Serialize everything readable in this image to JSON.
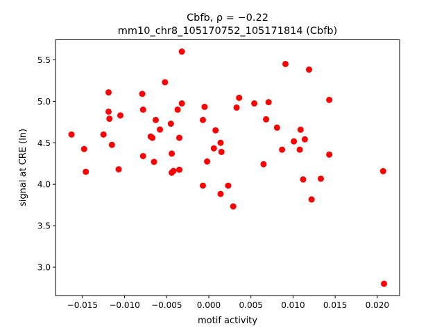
{
  "chart_data": {
    "type": "scatter",
    "title_line1": "Cbfb, ρ = −0.22",
    "title_line2": "mm10_chr8_105170752_105171814 (Cbfb)",
    "xlabel": "motif activity",
    "ylabel": "signal at CRE (ln)",
    "xlim": [
      -0.0182,
      0.02265
    ],
    "ylim": [
      2.658,
      5.742
    ],
    "xticks": [
      -0.015,
      -0.01,
      -0.005,
      0.0,
      0.005,
      0.01,
      0.015,
      0.02
    ],
    "xtick_labels": [
      "−0.015",
      "−0.010",
      "−0.005",
      "0.000",
      "0.005",
      "0.010",
      "0.015",
      "0.020"
    ],
    "yticks": [
      3.0,
      3.5,
      4.0,
      4.5,
      5.0,
      5.5
    ],
    "ytick_labels": [
      "3.0",
      "3.5",
      "4.0",
      "4.5",
      "5.0",
      "5.5"
    ],
    "grid": false,
    "marker_color": "#ff0000",
    "points": [
      [
        -0.0163,
        4.6
      ],
      [
        -0.0148,
        4.425
      ],
      [
        -0.0146,
        4.15
      ],
      [
        -0.0125,
        4.6
      ],
      [
        -0.0119,
        5.108
      ],
      [
        -0.0119,
        4.875
      ],
      [
        -0.0118,
        4.79
      ],
      [
        -0.0115,
        4.475
      ],
      [
        -0.0107,
        4.18
      ],
      [
        -0.0105,
        4.83
      ],
      [
        -0.0079,
        5.09
      ],
      [
        -0.0078,
        4.9
      ],
      [
        -0.0078,
        4.34
      ],
      [
        -0.0069,
        4.575
      ],
      [
        -0.0067,
        4.56
      ],
      [
        -0.0065,
        4.27
      ],
      [
        -0.0063,
        4.775
      ],
      [
        -0.0058,
        4.66
      ],
      [
        -0.0052,
        5.23
      ],
      [
        -0.0045,
        4.73
      ],
      [
        -0.0044,
        4.37
      ],
      [
        -0.0044,
        4.14
      ],
      [
        -0.0042,
        4.16
      ],
      [
        -0.0037,
        4.9
      ],
      [
        -0.0035,
        4.56
      ],
      [
        -0.0035,
        4.175
      ],
      [
        -0.0032,
        5.6
      ],
      [
        -0.0032,
        4.975
      ],
      [
        -0.0007,
        4.775
      ],
      [
        -0.0007,
        3.983
      ],
      [
        -0.0005,
        4.933
      ],
      [
        -0.0002,
        4.275
      ],
      [
        0.0006,
        4.433
      ],
      [
        0.0008,
        4.65
      ],
      [
        0.0014,
        4.5
      ],
      [
        0.0015,
        4.39
      ],
      [
        0.0014,
        3.883
      ],
      [
        0.0023,
        3.983
      ],
      [
        0.0029,
        3.733
      ],
      [
        0.0033,
        4.925
      ],
      [
        0.0036,
        5.042
      ],
      [
        0.0054,
        4.975
      ],
      [
        0.0065,
        4.242
      ],
      [
        0.0068,
        4.783
      ],
      [
        0.0071,
        4.99
      ],
      [
        0.0081,
        4.683
      ],
      [
        0.0087,
        4.417
      ],
      [
        0.0091,
        5.45
      ],
      [
        0.0101,
        4.517
      ],
      [
        0.0108,
        4.417
      ],
      [
        0.0109,
        4.658
      ],
      [
        0.0112,
        4.058
      ],
      [
        0.0114,
        4.542
      ],
      [
        0.0119,
        5.383
      ],
      [
        0.0122,
        3.817
      ],
      [
        0.0133,
        4.067
      ],
      [
        0.0143,
        5.017
      ],
      [
        0.0143,
        4.358
      ],
      [
        0.0207,
        4.158
      ],
      [
        0.0208,
        2.8
      ]
    ]
  }
}
